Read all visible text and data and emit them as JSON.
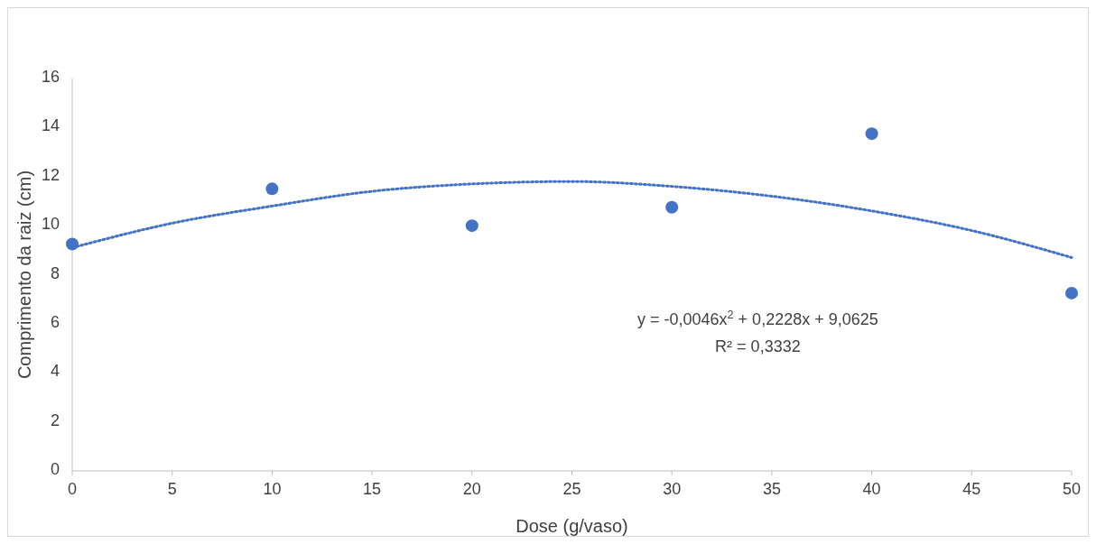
{
  "chart_data": {
    "type": "scatter",
    "xlabel": "Dose (g/vaso)",
    "ylabel": "Comprimento da raiz (cm)",
    "x": [
      0,
      10,
      20,
      30,
      40,
      50
    ],
    "series": [
      {
        "type": "scatter",
        "color": "#4472c4",
        "marker": "circle",
        "values": [
          9.25,
          11.5,
          10.0,
          10.75,
          13.75,
          7.25
        ]
      },
      {
        "type": "line",
        "color": "#4472c4",
        "line_style": "dotted",
        "marker": "none",
        "x": [
          0,
          5,
          10,
          15,
          20,
          25,
          30,
          35,
          40,
          45,
          50
        ],
        "values": [
          9.1,
          10.1,
          10.8,
          11.4,
          11.7,
          11.8,
          11.6,
          11.2,
          10.6,
          9.8,
          8.7
        ]
      }
    ],
    "xlim": [
      0,
      50
    ],
    "xticks": [
      0,
      5,
      10,
      15,
      20,
      25,
      30,
      35,
      40,
      45,
      50
    ],
    "ylim": [
      0,
      16
    ],
    "yticks": [
      0,
      2,
      4,
      6,
      8,
      10,
      12,
      14,
      16
    ],
    "grid": false,
    "legend": false,
    "annotations": [
      "y = -0,0046x$^{2}$ + 0,2228x + 9,0625",
      "R² = 0,3332"
    ]
  }
}
